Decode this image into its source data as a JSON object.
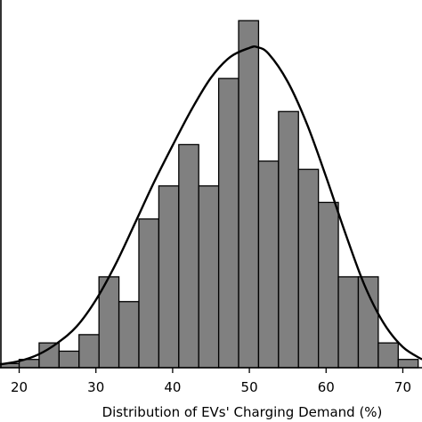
{
  "chart_data": {
    "type": "bar",
    "title": "",
    "xlabel": "Distribution of EVs' Charging Demand (%)",
    "ylabel": "",
    "xlim": [
      17.5,
      72.5
    ],
    "ylim": [
      0,
      44.5
    ],
    "x_ticks": [
      20,
      30,
      40,
      50,
      60,
      70
    ],
    "bin_width": 2.6,
    "bin_start": 17.4,
    "bin_counts": [
      0.5,
      1,
      3,
      2,
      4,
      11,
      8,
      18,
      22,
      27,
      22,
      35,
      42,
      25,
      31,
      24,
      20,
      11,
      11,
      3,
      1
    ],
    "kde": {
      "x": [
        17.5,
        20,
        22.5,
        25,
        27.5,
        30,
        32.5,
        35,
        37.5,
        40,
        42.5,
        45,
        47.5,
        50,
        51,
        52.5,
        55,
        57.5,
        60,
        62.5,
        65,
        67.5,
        70,
        72.5
      ],
      "y": [
        0.4,
        0.8,
        1.6,
        3.0,
        5.0,
        8.2,
        12.4,
        17.3,
        22.3,
        26.9,
        31.3,
        35.1,
        37.6,
        38.7,
        38.8,
        38.0,
        34.6,
        29.5,
        23.1,
        16.3,
        10.0,
        5.4,
        2.5,
        1.0
      ]
    },
    "grid": false,
    "legend": "none",
    "bar_color": "#808080",
    "edge_color": "#000000",
    "line_color": "#000000"
  }
}
